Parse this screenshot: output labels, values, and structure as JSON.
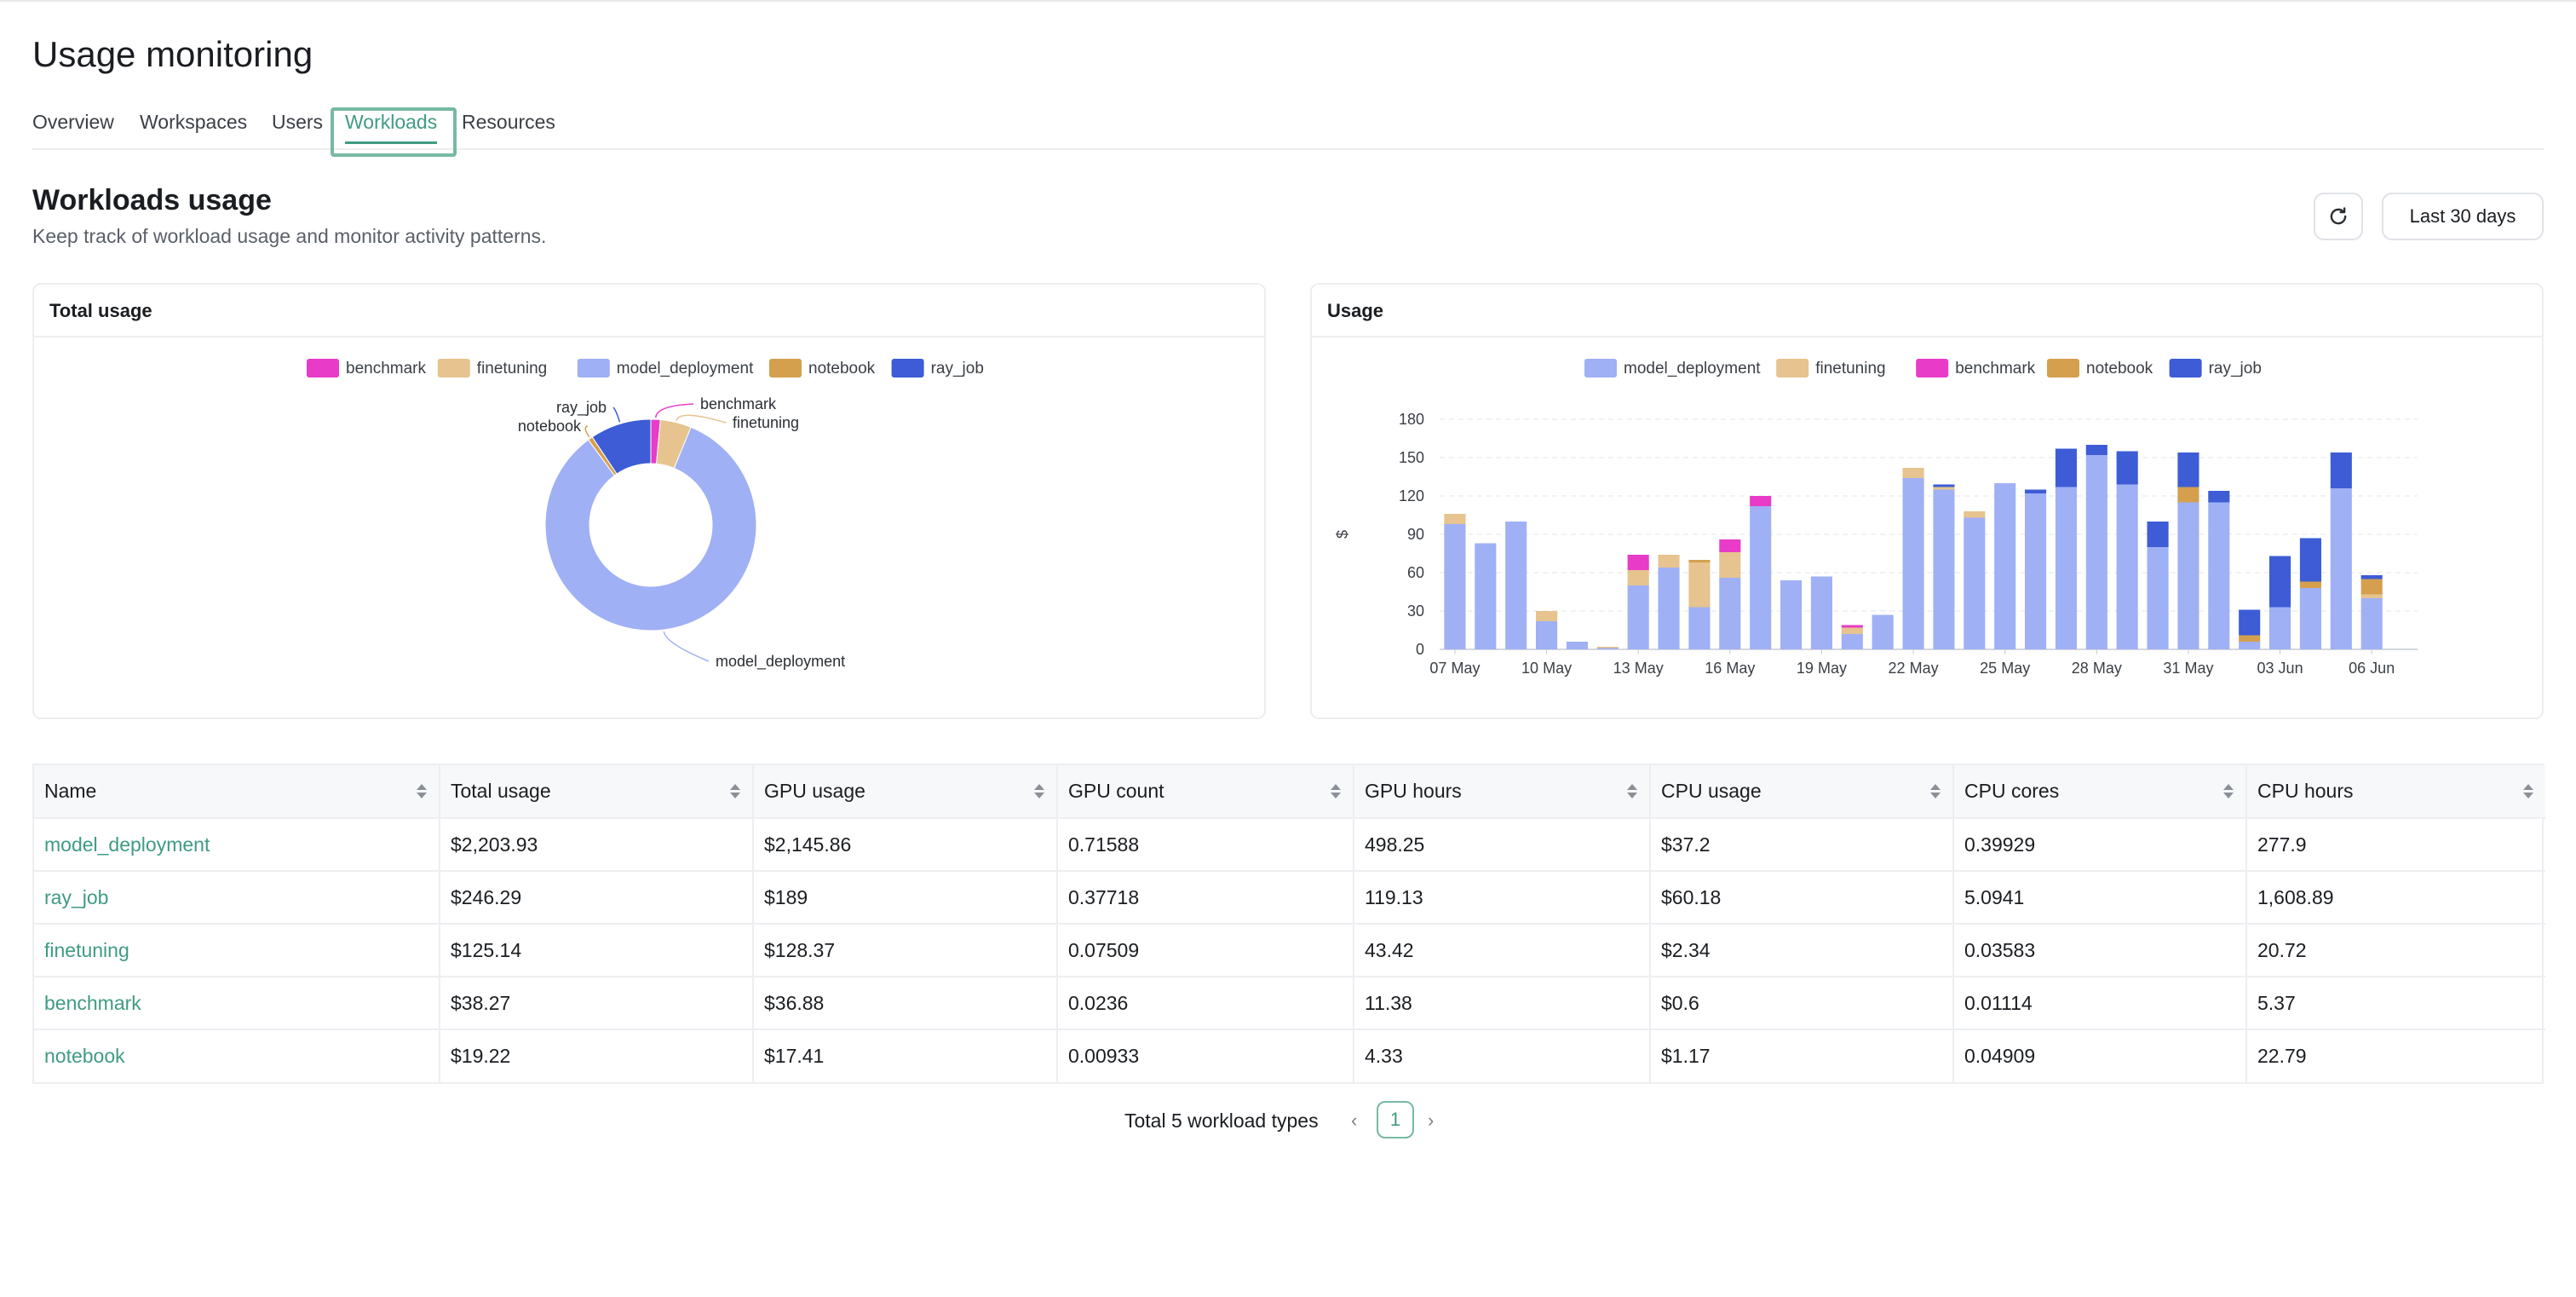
{
  "page": {
    "title": "Usage monitoring"
  },
  "tabs": [
    {
      "label": "Overview",
      "active": false
    },
    {
      "label": "Workspaces",
      "active": false
    },
    {
      "label": "Users",
      "active": false
    },
    {
      "label": "Workloads",
      "active": true
    },
    {
      "label": "Resources",
      "active": false
    }
  ],
  "section": {
    "title": "Workloads usage",
    "subtitle": "Keep track of workload usage and monitor activity patterns.",
    "refresh_icon": "refresh-icon",
    "range_label": "Last 30 days"
  },
  "colors": {
    "accent": "#3f9b83",
    "benchmark": "#e83bc8",
    "finetuning": "#e6c38f",
    "model_deployment": "#a0b0f5",
    "notebook": "#d4a04e",
    "ray_job": "#3d5cd6"
  },
  "total_card": {
    "title": "Total usage"
  },
  "usage_card": {
    "title": "Usage"
  },
  "chart_data": [
    {
      "type": "pie",
      "variant": "donut",
      "title": "Total usage",
      "legend": [
        "benchmark",
        "finetuning",
        "model_deployment",
        "notebook",
        "ray_job"
      ],
      "legend_position": "top",
      "slices": [
        {
          "label": "benchmark",
          "value": 38.27
        },
        {
          "label": "finetuning",
          "value": 125.14
        },
        {
          "label": "model_deployment",
          "value": 2203.93
        },
        {
          "label": "notebook",
          "value": 19.22
        },
        {
          "label": "ray_job",
          "value": 246.29
        }
      ]
    },
    {
      "type": "bar",
      "stacked": true,
      "title": "Usage",
      "ylabel": "$",
      "xlabel": "",
      "ylim": [
        0,
        180
      ],
      "yticks": [
        0,
        30,
        60,
        90,
        120,
        150,
        180
      ],
      "grid": true,
      "legend": [
        "model_deployment",
        "finetuning",
        "benchmark",
        "notebook",
        "ray_job"
      ],
      "legend_position": "top",
      "xtick_labels": [
        "07 May",
        "10 May",
        "13 May",
        "16 May",
        "19 May",
        "22 May",
        "25 May",
        "28 May",
        "31 May",
        "03 Jun",
        "06 Jun"
      ],
      "categories": [
        "07 May",
        "08 May",
        "09 May",
        "10 May",
        "11 May",
        "12 May",
        "13 May",
        "14 May",
        "15 May",
        "16 May",
        "17 May",
        "18 May",
        "19 May",
        "20 May",
        "21 May",
        "22 May",
        "23 May",
        "24 May",
        "25 May",
        "26 May",
        "27 May",
        "28 May",
        "29 May",
        "30 May",
        "31 May",
        "01 Jun",
        "02 Jun",
        "03 Jun",
        "04 Jun",
        "05 Jun",
        "06 Jun",
        "07 Jun"
      ],
      "series": [
        {
          "name": "model_deployment",
          "values": [
            98,
            83,
            100,
            22,
            6,
            1,
            50,
            64,
            33,
            56,
            112,
            54,
            57,
            12,
            27,
            134,
            125,
            103,
            130,
            122,
            127,
            152,
            129,
            80,
            115,
            115,
            6,
            33,
            48,
            126,
            40,
            0
          ]
        },
        {
          "name": "finetuning",
          "values": [
            8,
            0,
            0,
            8,
            0,
            1,
            12,
            10,
            35,
            20,
            0,
            0,
            0,
            5,
            0,
            8,
            2,
            5,
            0,
            0,
            0,
            0,
            0,
            0,
            0,
            0,
            0,
            0,
            0,
            0,
            3,
            0
          ]
        },
        {
          "name": "benchmark",
          "values": [
            0,
            0,
            0,
            0,
            0,
            0,
            12,
            0,
            0,
            10,
            8,
            0,
            0,
            2,
            0,
            0,
            0,
            0,
            0,
            0,
            0,
            0,
            0,
            0,
            0,
            0,
            0,
            0,
            0,
            0,
            0,
            0
          ]
        },
        {
          "name": "notebook",
          "values": [
            0,
            0,
            0,
            0,
            0,
            0,
            0,
            0,
            2,
            0,
            0,
            0,
            0,
            0,
            0,
            0,
            0,
            0,
            0,
            0,
            0,
            0,
            0,
            0,
            12,
            0,
            5,
            0,
            5,
            0,
            12,
            0
          ]
        },
        {
          "name": "ray_job",
          "values": [
            0,
            0,
            0,
            0,
            0,
            0,
            0,
            0,
            0,
            0,
            0,
            0,
            0,
            0,
            0,
            0,
            2,
            0,
            0,
            3,
            30,
            8,
            26,
            20,
            27,
            9,
            20,
            40,
            34,
            28,
            3,
            0
          ]
        }
      ]
    }
  ],
  "table": {
    "columns": [
      "Name",
      "Total usage",
      "GPU usage",
      "GPU count",
      "GPU hours",
      "CPU usage",
      "CPU cores",
      "CPU hours"
    ],
    "rows": [
      [
        "model_deployment",
        "$2,203.93",
        "$2,145.86",
        "0.71588",
        "498.25",
        "$37.2",
        "0.39929",
        "277.9"
      ],
      [
        "ray_job",
        "$246.29",
        "$189",
        "0.37718",
        "119.13",
        "$60.18",
        "5.0941",
        "1,608.89"
      ],
      [
        "finetuning",
        "$125.14",
        "$128.37",
        "0.07509",
        "43.42",
        "$2.34",
        "0.03583",
        "20.72"
      ],
      [
        "benchmark",
        "$38.27",
        "$36.88",
        "0.0236",
        "11.38",
        "$0.6",
        "0.01114",
        "5.37"
      ],
      [
        "notebook",
        "$19.22",
        "$17.41",
        "0.00933",
        "4.33",
        "$1.17",
        "0.04909",
        "22.79"
      ]
    ]
  },
  "pagination": {
    "total_label": "Total 5 workload types",
    "current_page": "1",
    "prev_icon": "chevron-left-icon",
    "next_icon": "chevron-right-icon"
  }
}
